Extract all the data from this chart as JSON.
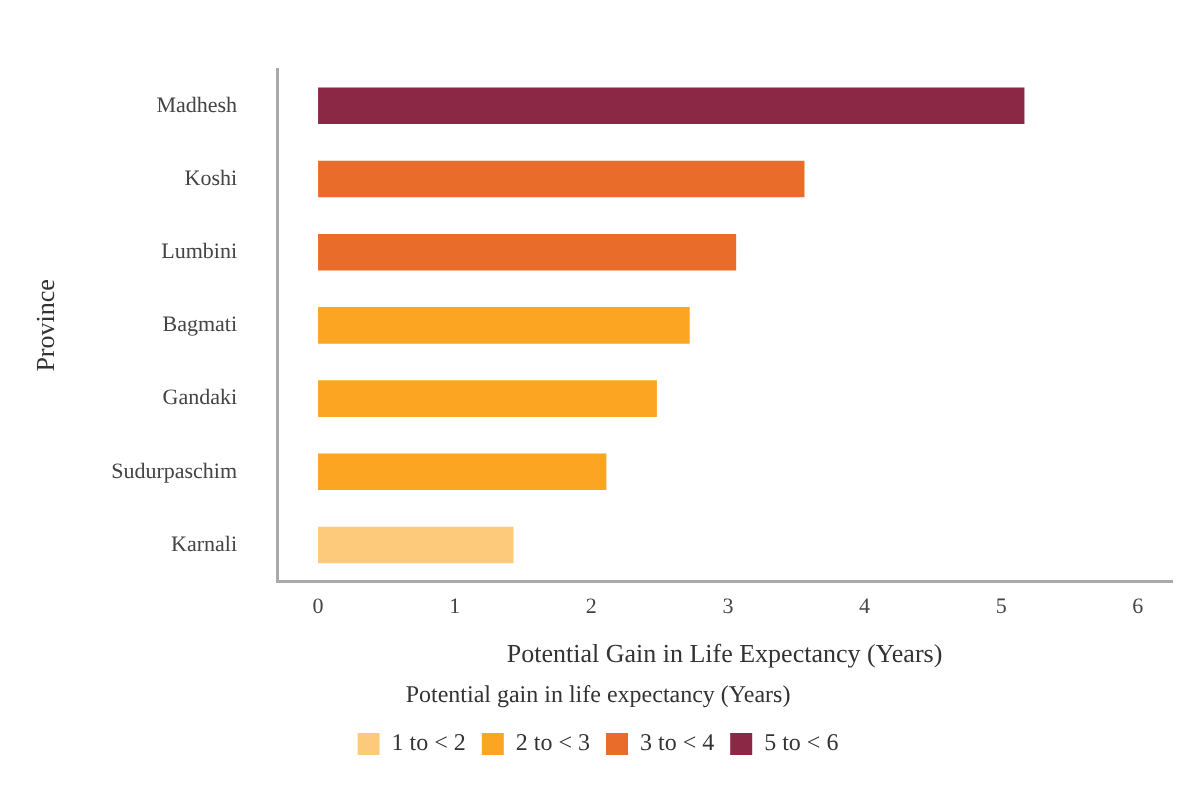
{
  "chart_data": {
    "type": "bar",
    "orientation": "horizontal",
    "stacked": true,
    "categories": [
      "Madhesh",
      "Koshi",
      "Lumbini",
      "Bagmati",
      "Gandaki",
      "Sudurpaschim",
      "Karnali"
    ],
    "series": [
      {
        "name": "1 to < 2",
        "color": "#fdc97a",
        "values": [
          null,
          null,
          null,
          null,
          null,
          null,
          1.43
        ]
      },
      {
        "name": "2 to < 3",
        "color": "#fca523",
        "values": [
          null,
          null,
          null,
          2.72,
          2.48,
          2.11,
          null
        ]
      },
      {
        "name": "3 to < 4",
        "color": "#ea6c2b",
        "values": [
          null,
          3.56,
          3.06,
          null,
          null,
          null,
          null
        ]
      },
      {
        "name": "5 to < 6",
        "color": "#8b2846",
        "values": [
          5.17,
          null,
          null,
          null,
          null,
          null,
          null
        ]
      }
    ],
    "xlabel": "Potential Gain in Life Expectancy (Years)",
    "ylabel": "Province",
    "xlim": [
      -0.3,
      6.25
    ],
    "xticks": [
      0,
      1,
      2,
      3,
      4,
      5,
      6
    ],
    "grid": false,
    "legend": "bottom",
    "legend_title": "Potential gain in life expectancy (Years)"
  }
}
